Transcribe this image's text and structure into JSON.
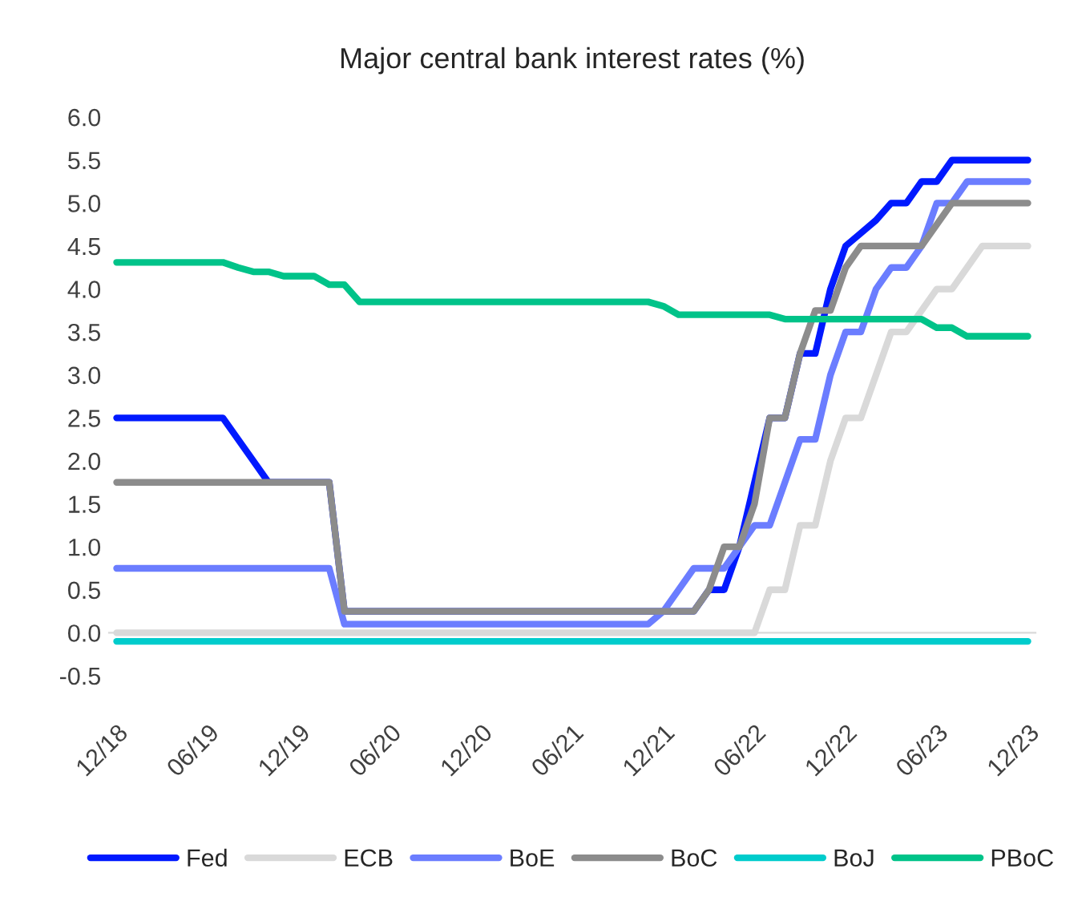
{
  "chart_data": {
    "type": "line",
    "title": "Major central bank interest rates (%)",
    "categories": [
      "12/18",
      null,
      null,
      null,
      null,
      null,
      "06/19",
      null,
      null,
      null,
      null,
      null,
      "12/19",
      null,
      null,
      null,
      null,
      null,
      "06/20",
      null,
      null,
      null,
      null,
      null,
      "12/20",
      null,
      null,
      null,
      null,
      null,
      "06/21",
      null,
      null,
      null,
      null,
      null,
      "12/21",
      null,
      null,
      null,
      null,
      null,
      "06/22",
      null,
      null,
      null,
      null,
      null,
      "12/22",
      null,
      null,
      null,
      null,
      null,
      "06/23",
      null,
      null,
      null,
      null,
      null,
      "12/23"
    ],
    "series": [
      {
        "name": "Fed",
        "color": "#0019ff",
        "values": [
          2.5,
          2.5,
          2.5,
          2.5,
          2.5,
          2.5,
          2.5,
          2.5,
          2.25,
          2.0,
          1.75,
          1.75,
          1.75,
          1.75,
          1.75,
          0.25,
          0.25,
          0.25,
          0.25,
          0.25,
          0.25,
          0.25,
          0.25,
          0.25,
          0.25,
          0.25,
          0.25,
          0.25,
          0.25,
          0.25,
          0.25,
          0.25,
          0.25,
          0.25,
          0.25,
          0.25,
          0.25,
          0.25,
          0.25,
          0.5,
          0.5,
          1.0,
          1.75,
          2.5,
          2.5,
          3.25,
          3.25,
          4.0,
          4.5,
          4.65,
          4.8,
          5.0,
          5.0,
          5.25,
          5.25,
          5.5,
          5.5,
          5.5,
          5.5,
          5.5,
          5.5
        ]
      },
      {
        "name": "ECB",
        "color": "#d9d9d9",
        "values": [
          0,
          0,
          0,
          0,
          0,
          0,
          0,
          0,
          0,
          0,
          0,
          0,
          0,
          0,
          0,
          0,
          0,
          0,
          0,
          0,
          0,
          0,
          0,
          0,
          0,
          0,
          0,
          0,
          0,
          0,
          0,
          0,
          0,
          0,
          0,
          0,
          0,
          0,
          0,
          0,
          0,
          0,
          0,
          0.5,
          0.5,
          1.25,
          1.25,
          2.0,
          2.5,
          2.5,
          3.0,
          3.5,
          3.5,
          3.75,
          4.0,
          4.0,
          4.25,
          4.5,
          4.5,
          4.5,
          4.5
        ]
      },
      {
        "name": "BoE",
        "color": "#6b7dff",
        "values": [
          0.75,
          0.75,
          0.75,
          0.75,
          0.75,
          0.75,
          0.75,
          0.75,
          0.75,
          0.75,
          0.75,
          0.75,
          0.75,
          0.75,
          0.75,
          0.1,
          0.1,
          0.1,
          0.1,
          0.1,
          0.1,
          0.1,
          0.1,
          0.1,
          0.1,
          0.1,
          0.1,
          0.1,
          0.1,
          0.1,
          0.1,
          0.1,
          0.1,
          0.1,
          0.1,
          0.1,
          0.25,
          0.5,
          0.75,
          0.75,
          0.75,
          1.0,
          1.25,
          1.25,
          1.75,
          2.25,
          2.25,
          3.0,
          3.5,
          3.5,
          4.0,
          4.25,
          4.25,
          4.5,
          5.0,
          5.0,
          5.25,
          5.25,
          5.25,
          5.25,
          5.25
        ]
      },
      {
        "name": "BoC",
        "color": "#8c8c8c",
        "values": [
          1.75,
          1.75,
          1.75,
          1.75,
          1.75,
          1.75,
          1.75,
          1.75,
          1.75,
          1.75,
          1.75,
          1.75,
          1.75,
          1.75,
          1.75,
          0.25,
          0.25,
          0.25,
          0.25,
          0.25,
          0.25,
          0.25,
          0.25,
          0.25,
          0.25,
          0.25,
          0.25,
          0.25,
          0.25,
          0.25,
          0.25,
          0.25,
          0.25,
          0.25,
          0.25,
          0.25,
          0.25,
          0.25,
          0.25,
          0.5,
          1.0,
          1.0,
          1.5,
          2.5,
          2.5,
          3.25,
          3.75,
          3.75,
          4.25,
          4.5,
          4.5,
          4.5,
          4.5,
          4.5,
          4.75,
          5.0,
          5.0,
          5.0,
          5.0,
          5.0,
          5.0
        ]
      },
      {
        "name": "BoJ",
        "color": "#00cccc",
        "values": [
          -0.1,
          -0.1,
          -0.1,
          -0.1,
          -0.1,
          -0.1,
          -0.1,
          -0.1,
          -0.1,
          -0.1,
          -0.1,
          -0.1,
          -0.1,
          -0.1,
          -0.1,
          -0.1,
          -0.1,
          -0.1,
          -0.1,
          -0.1,
          -0.1,
          -0.1,
          -0.1,
          -0.1,
          -0.1,
          -0.1,
          -0.1,
          -0.1,
          -0.1,
          -0.1,
          -0.1,
          -0.1,
          -0.1,
          -0.1,
          -0.1,
          -0.1,
          -0.1,
          -0.1,
          -0.1,
          -0.1,
          -0.1,
          -0.1,
          -0.1,
          -0.1,
          -0.1,
          -0.1,
          -0.1,
          -0.1,
          -0.1,
          -0.1,
          -0.1,
          -0.1,
          -0.1,
          -0.1,
          -0.1,
          -0.1,
          -0.1,
          -0.1,
          -0.1,
          -0.1,
          -0.1
        ]
      },
      {
        "name": "PBoC",
        "color": "#00c389",
        "values": [
          4.31,
          4.31,
          4.31,
          4.31,
          4.31,
          4.31,
          4.31,
          4.31,
          4.25,
          4.2,
          4.2,
          4.15,
          4.15,
          4.15,
          4.05,
          4.05,
          3.85,
          3.85,
          3.85,
          3.85,
          3.85,
          3.85,
          3.85,
          3.85,
          3.85,
          3.85,
          3.85,
          3.85,
          3.85,
          3.85,
          3.85,
          3.85,
          3.85,
          3.85,
          3.85,
          3.85,
          3.8,
          3.7,
          3.7,
          3.7,
          3.7,
          3.7,
          3.7,
          3.7,
          3.65,
          3.65,
          3.65,
          3.65,
          3.65,
          3.65,
          3.65,
          3.65,
          3.65,
          3.65,
          3.55,
          3.55,
          3.45,
          3.45,
          3.45,
          3.45,
          3.45
        ]
      }
    ],
    "ylim": [
      -0.5,
      6.0
    ],
    "yticks": [
      {
        "value": -0.5,
        "label": "-0.5"
      },
      {
        "value": 0,
        "label": "0.0"
      },
      {
        "value": 0.5,
        "label": "0.5"
      },
      {
        "value": 1,
        "label": "1.0"
      },
      {
        "value": 1.5,
        "label": "1.5"
      },
      {
        "value": 2,
        "label": "2.0"
      },
      {
        "value": 2.5,
        "label": "2.5"
      },
      {
        "value": 3,
        "label": "3.0"
      },
      {
        "value": 3.5,
        "label": "3.5"
      },
      {
        "value": 4,
        "label": "4.0"
      },
      {
        "value": 4.5,
        "label": "4.5"
      },
      {
        "value": 5,
        "label": "5.0"
      },
      {
        "value": 5.5,
        "label": "5.5"
      },
      {
        "value": 6,
        "label": "6.0"
      }
    ],
    "grid": false,
    "legend": "bottom",
    "marker": "none",
    "line_style": "solid"
  }
}
